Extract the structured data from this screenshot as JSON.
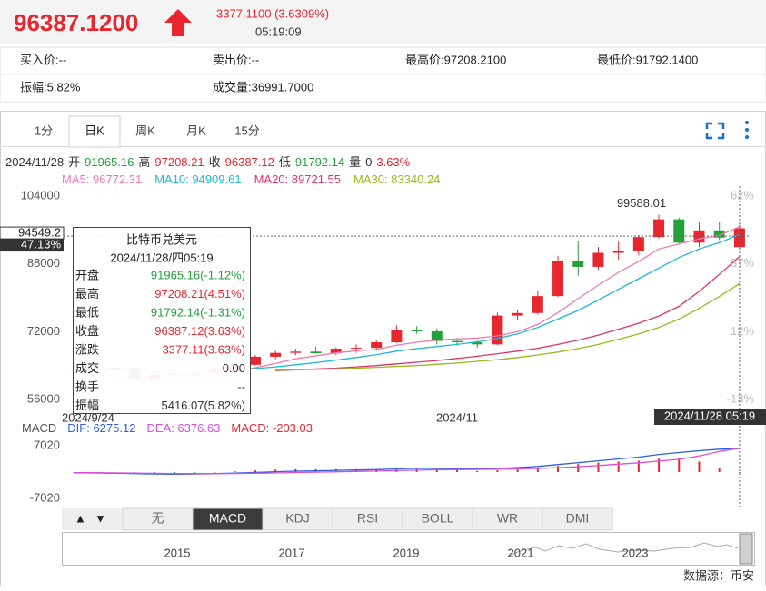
{
  "header": {
    "price": "96387.1200",
    "change": "3377.1100 (3.6309%)",
    "time": "05:19:09"
  },
  "quote": [
    [
      "买入价:--",
      "卖出价:--",
      "最高价:97208.2100",
      "最低价:91792.1400"
    ],
    [
      "振幅:5.82%",
      "成交量:36991.7000"
    ]
  ],
  "tabs": [
    "1分",
    "日K",
    "周K",
    "月K",
    "15分"
  ],
  "active_tab": 1,
  "ohlc_line": [
    {
      "text": "2024/11/28",
      "color": "#333333"
    },
    {
      "text": "开",
      "color": "#333333"
    },
    {
      "text": "91965.16",
      "color": "#23a13a"
    },
    {
      "text": "高",
      "color": "#333333"
    },
    {
      "text": "97208.21",
      "color": "#e8262d"
    },
    {
      "text": "收",
      "color": "#333333"
    },
    {
      "text": "96387.12",
      "color": "#e8262d"
    },
    {
      "text": "低",
      "color": "#333333"
    },
    {
      "text": "91792.14",
      "color": "#23a13a"
    },
    {
      "text": "量",
      "color": "#333333"
    },
    {
      "text": "0",
      "color": "#333333"
    },
    {
      "text": "3.63%",
      "color": "#e8262d"
    }
  ],
  "ma_line": [
    {
      "text": "MA5: 96772.31",
      "color": "#f07ab0"
    },
    {
      "text": "MA10: 94909.61",
      "color": "#1fb6d6"
    },
    {
      "text": "MA20: 89721.55",
      "color": "#e0336a"
    },
    {
      "text": "MA30: 83340.24",
      "color": "#9ab820"
    }
  ],
  "tooltip": {
    "title": "比特币兑美元",
    "date": "2024/11/28/四05:19",
    "rows": [
      {
        "label": "开盘",
        "value": "91965.16(-1.12%)",
        "color": "#23a13a"
      },
      {
        "label": "最高",
        "value": "97208.21(4.51%)",
        "color": "#e8262d"
      },
      {
        "label": "最低",
        "value": "91792.14(-1.31%)",
        "color": "#23a13a"
      },
      {
        "label": "收盘",
        "value": "96387.12(3.63%)",
        "color": "#e8262d"
      },
      {
        "label": "涨跌",
        "value": "3377.11(3.63%)",
        "color": "#e8262d"
      },
      {
        "label": "成交",
        "value": "0.00",
        "color": "#333333"
      },
      {
        "label": "换手",
        "value": "--",
        "color": "#333333"
      },
      {
        "label": "振幅",
        "value": "5416.07(5.82%)",
        "color": "#333333"
      }
    ]
  },
  "crosshair": {
    "price": 94549.2,
    "percent": "47.13%",
    "date": "2024/11/28 05:19"
  },
  "chart_data": [
    {
      "type": "candlestick",
      "categories": [
        "2024/9/24",
        null,
        null,
        null,
        null,
        null,
        null,
        null,
        null,
        null,
        null,
        null,
        null,
        null,
        null,
        null,
        null,
        null,
        null,
        "2024/11",
        null,
        null,
        null,
        null,
        null,
        null,
        null,
        null,
        null,
        null,
        null,
        null,
        null,
        null
      ],
      "open": [
        63200,
        63300,
        63100,
        63500,
        60800,
        61800,
        62100,
        62300,
        63000,
        64200,
        66100,
        67000,
        67300,
        66900,
        68000,
        68200,
        69500,
        72300,
        72100,
        69800,
        69500,
        69000,
        75800,
        76400,
        80400,
        88700,
        87300,
        90600,
        91100,
        94300,
        98500,
        93000,
        95900,
        91965.16
      ],
      "high": [
        64800,
        64200,
        64000,
        64500,
        62000,
        63000,
        63500,
        64000,
        64500,
        66500,
        67500,
        68000,
        68500,
        68300,
        69000,
        70000,
        73500,
        73300,
        72800,
        70500,
        70000,
        76500,
        77200,
        81500,
        89900,
        93400,
        92000,
        93200,
        94800,
        99588.01,
        98900,
        98000,
        98000,
        97208.21
      ],
      "low": [
        62700,
        61000,
        62500,
        60000,
        60100,
        61300,
        61800,
        61900,
        62500,
        64000,
        65500,
        66500,
        66800,
        66500,
        67000,
        67800,
        69300,
        71500,
        69000,
        68800,
        68200,
        68900,
        74800,
        76000,
        80200,
        85200,
        86600,
        89000,
        90000,
        94000,
        92600,
        92000,
        93600,
        91792.14
      ],
      "close": [
        63300,
        63100,
        63500,
        60800,
        61800,
        62100,
        62300,
        63000,
        64200,
        66100,
        67000,
        67300,
        66900,
        68000,
        68200,
        69500,
        72300,
        72100,
        69800,
        69500,
        69000,
        75800,
        76400,
        80400,
        88700,
        87300,
        90600,
        91100,
        94300,
        98500,
        93000,
        95900,
        94200,
        96387.12
      ],
      "up_color": "#e8262d",
      "down_color": "#23a13a",
      "series": [
        {
          "name": "MA5",
          "color": "#f07ab0",
          "values": [
            63000,
            62900,
            63000,
            62700,
            62500,
            62100,
            61800,
            62000,
            62700,
            63500,
            64500,
            65600,
            66300,
            67000,
            67500,
            67800,
            68800,
            69500,
            70000,
            70300,
            70500,
            71000,
            72000,
            73700,
            76500,
            79800,
            83000,
            86000,
            88600,
            91500,
            92700,
            93900,
            94700,
            96772.31
          ]
        },
        {
          "name": "MA10",
          "color": "#1fb6d6",
          "values": [
            null,
            null,
            null,
            null,
            null,
            null,
            null,
            null,
            63000,
            63300,
            63700,
            64200,
            64700,
            65300,
            65900,
            66600,
            67400,
            68000,
            68500,
            69000,
            69600,
            70400,
            71500,
            73000,
            75000,
            77000,
            79500,
            82000,
            84500,
            87000,
            89500,
            91500,
            93000,
            94909.61
          ]
        },
        {
          "name": "MA20",
          "color": "#e0336a",
          "values": [
            null,
            null,
            null,
            null,
            null,
            null,
            null,
            null,
            null,
            null,
            62800,
            63000,
            63200,
            63400,
            63700,
            64000,
            64400,
            64800,
            65200,
            65700,
            66200,
            66800,
            67400,
            68100,
            69000,
            70000,
            71200,
            72600,
            74000,
            75700,
            78000,
            81500,
            85500,
            89721.55
          ]
        },
        {
          "name": "MA30",
          "color": "#9ab820",
          "values": [
            null,
            null,
            null,
            null,
            null,
            null,
            null,
            null,
            null,
            null,
            62900,
            63000,
            63100,
            63200,
            63400,
            63600,
            63800,
            64000,
            64300,
            64600,
            65000,
            65400,
            65900,
            66500,
            67200,
            68000,
            69000,
            70200,
            71500,
            73000,
            75000,
            77500,
            80300,
            83340.24
          ]
        }
      ],
      "annotations": [
        "99588.01"
      ],
      "ylim": [
        52800,
        106350
      ],
      "yticks": [
        56000,
        72000,
        88000,
        104000
      ],
      "y2lim": [
        -18,
        65.7
      ],
      "y2ticks": [
        {
          "value": -13,
          "label": "-13%"
        },
        {
          "value": 12,
          "label": "12%"
        },
        {
          "value": 37,
          "label": "37%"
        },
        {
          "value": 62,
          "label": "62%"
        }
      ],
      "grid": false
    },
    {
      "type": "macd",
      "legend": [
        {
          "text": "MACD",
          "color": "#555555"
        },
        {
          "text": "DIF: 6275.12",
          "color": "#3060e0"
        },
        {
          "text": "DEA: 6376.63",
          "color": "#d84fd8"
        },
        {
          "text": "MACD: -203.03",
          "color": "#e8262d"
        }
      ],
      "series": [
        {
          "name": "DIF",
          "color": "#3060e0",
          "values": [
            -200,
            -250,
            -300,
            -400,
            -500,
            -550,
            -500,
            -400,
            -300,
            -100,
            100,
            250,
            350,
            450,
            550,
            650,
            850,
            1000,
            950,
            900,
            850,
            1000,
            1200,
            1500,
            2000,
            2500,
            3000,
            3500,
            4000,
            4700,
            5200,
            5700,
            6100,
            6275.12
          ]
        },
        {
          "name": "DEA",
          "color": "#d84fd8",
          "values": [
            -150,
            -180,
            -220,
            -280,
            -340,
            -380,
            -400,
            -400,
            -380,
            -320,
            -230,
            -130,
            -30,
            70,
            170,
            270,
            390,
            510,
            600,
            660,
            700,
            760,
            850,
            980,
            1180,
            1440,
            1750,
            2100,
            2480,
            2920,
            3400,
            4300,
            5500,
            6376.63
          ]
        }
      ],
      "histogram": [
        -100,
        -140,
        -160,
        -240,
        -320,
        -340,
        -200,
        0,
        160,
        440,
        660,
        760,
        760,
        760,
        760,
        760,
        920,
        980,
        700,
        480,
        300,
        480,
        700,
        1040,
        1640,
        2120,
        2500,
        2800,
        3040,
        3560,
        3600,
        2800,
        1200,
        -203.03
      ],
      "up_color": "#e8262d",
      "down_color": "#23a13a",
      "ylim": [
        -9682,
        9682
      ],
      "yticks": [
        -7020,
        7020
      ]
    }
  ],
  "indicator_tabs": [
    "无",
    "MACD",
    "KDJ",
    "RSI",
    "BOLL",
    "WR",
    "DMI"
  ],
  "active_indicator": 1,
  "navigator": {
    "years": [
      "2015",
      "2017",
      "2019",
      "2021",
      "2023"
    ]
  },
  "source": "数据源：币安"
}
